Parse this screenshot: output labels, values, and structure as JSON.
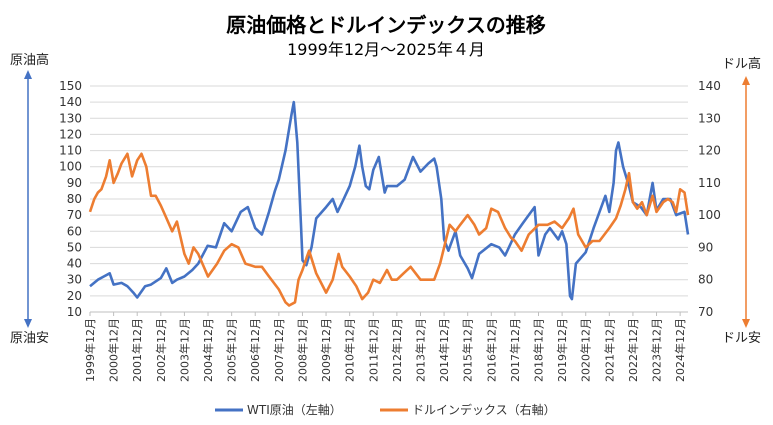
{
  "chart_data": {
    "type": "line",
    "title": "原油価格とドルインデックスの推移",
    "subtitle": "1999年12月～2025年４月",
    "left_axis": {
      "range": [
        10,
        150
      ],
      "step": 10,
      "top_label": "原油高",
      "bottom_label": "原油安",
      "color": "#4472C4"
    },
    "right_axis": {
      "range": [
        70,
        140
      ],
      "step": 10,
      "top_label": "ドル高",
      "bottom_label": "ドル安",
      "color": "#ED7D31"
    },
    "x_range": [
      1999.917,
      2025.25
    ],
    "categories": [
      "1999年12月",
      "2000年12月",
      "2001年12月",
      "2002年12月",
      "2003年12月",
      "2004年12月",
      "2005年12月",
      "2006年12月",
      "2007年12月",
      "2008年12月",
      "2009年12月",
      "2010年12月",
      "2011年12月",
      "2012年12月",
      "2013年12月",
      "2014年12月",
      "2015年12月",
      "2016年12月",
      "2017年12月",
      "2018年12月",
      "2019年12月",
      "2020年12月",
      "2021年12月",
      "2022年12月",
      "2023年12月",
      "2024年12月"
    ],
    "grid": true,
    "legend_position": "bottom",
    "series": [
      {
        "name": "WTI原油（左軸）",
        "axis": "left",
        "color": "#4472C4",
        "points": [
          [
            1999.917,
            26
          ],
          [
            2000.25,
            30
          ],
          [
            2000.5,
            32
          ],
          [
            2000.75,
            34
          ],
          [
            2000.917,
            27
          ],
          [
            2001.25,
            28
          ],
          [
            2001.5,
            26
          ],
          [
            2001.75,
            22
          ],
          [
            2001.917,
            19
          ],
          [
            2002.25,
            26
          ],
          [
            2002.5,
            27
          ],
          [
            2002.917,
            31
          ],
          [
            2003.15,
            37
          ],
          [
            2003.4,
            28
          ],
          [
            2003.6,
            30
          ],
          [
            2003.917,
            32
          ],
          [
            2004.25,
            36
          ],
          [
            2004.5,
            40
          ],
          [
            2004.9,
            51
          ],
          [
            2005.25,
            50
          ],
          [
            2005.6,
            65
          ],
          [
            2005.917,
            60
          ],
          [
            2006.3,
            72
          ],
          [
            2006.6,
            75
          ],
          [
            2006.917,
            62
          ],
          [
            2007.2,
            58
          ],
          [
            2007.5,
            72
          ],
          [
            2007.75,
            85
          ],
          [
            2007.917,
            92
          ],
          [
            2008.2,
            110
          ],
          [
            2008.45,
            132
          ],
          [
            2008.55,
            140
          ],
          [
            2008.7,
            115
          ],
          [
            2008.85,
            65
          ],
          [
            2008.917,
            42
          ],
          [
            2009.08,
            39
          ],
          [
            2009.3,
            50
          ],
          [
            2009.5,
            68
          ],
          [
            2009.917,
            75
          ],
          [
            2010.2,
            80
          ],
          [
            2010.4,
            72
          ],
          [
            2010.6,
            78
          ],
          [
            2010.917,
            88
          ],
          [
            2011.15,
            100
          ],
          [
            2011.33,
            113
          ],
          [
            2011.45,
            100
          ],
          [
            2011.6,
            88
          ],
          [
            2011.75,
            86
          ],
          [
            2011.917,
            98
          ],
          [
            2012.15,
            106
          ],
          [
            2012.4,
            84
          ],
          [
            2012.5,
            88
          ],
          [
            2012.917,
            88
          ],
          [
            2013.25,
            92
          ],
          [
            2013.6,
            106
          ],
          [
            2013.917,
            97
          ],
          [
            2014.25,
            102
          ],
          [
            2014.5,
            105
          ],
          [
            2014.6,
            100
          ],
          [
            2014.8,
            80
          ],
          [
            2014.917,
            55
          ],
          [
            2015.1,
            48
          ],
          [
            2015.4,
            60
          ],
          [
            2015.6,
            45
          ],
          [
            2015.917,
            37
          ],
          [
            2016.1,
            31
          ],
          [
            2016.4,
            46
          ],
          [
            2016.917,
            52
          ],
          [
            2017.25,
            50
          ],
          [
            2017.5,
            45
          ],
          [
            2017.917,
            58
          ],
          [
            2018.25,
            65
          ],
          [
            2018.5,
            70
          ],
          [
            2018.75,
            75
          ],
          [
            2018.917,
            45
          ],
          [
            2019.2,
            58
          ],
          [
            2019.4,
            62
          ],
          [
            2019.75,
            55
          ],
          [
            2019.917,
            60
          ],
          [
            2020.1,
            52
          ],
          [
            2020.25,
            20
          ],
          [
            2020.33,
            18
          ],
          [
            2020.5,
            40
          ],
          [
            2020.917,
            47
          ],
          [
            2021.25,
            62
          ],
          [
            2021.5,
            72
          ],
          [
            2021.75,
            82
          ],
          [
            2021.917,
            72
          ],
          [
            2022.1,
            90
          ],
          [
            2022.2,
            110
          ],
          [
            2022.3,
            115
          ],
          [
            2022.5,
            100
          ],
          [
            2022.75,
            88
          ],
          [
            2022.917,
            78
          ],
          [
            2023.25,
            75
          ],
          [
            2023.5,
            70
          ],
          [
            2023.75,
            90
          ],
          [
            2023.917,
            73
          ],
          [
            2024.2,
            80
          ],
          [
            2024.5,
            80
          ],
          [
            2024.75,
            70
          ],
          [
            2024.917,
            71
          ],
          [
            2025.1,
            72
          ],
          [
            2025.25,
            58
          ]
        ]
      },
      {
        "name": "ドルインデックス（右軸）",
        "axis": "right",
        "color": "#ED7D31",
        "points": [
          [
            1999.917,
            101
          ],
          [
            2000.1,
            105
          ],
          [
            2000.25,
            107
          ],
          [
            2000.4,
            108
          ],
          [
            2000.6,
            112
          ],
          [
            2000.75,
            117
          ],
          [
            2000.917,
            110
          ],
          [
            2001.1,
            113
          ],
          [
            2001.25,
            116
          ],
          [
            2001.5,
            119
          ],
          [
            2001.7,
            112
          ],
          [
            2001.917,
            117
          ],
          [
            2002.1,
            119
          ],
          [
            2002.3,
            115
          ],
          [
            2002.5,
            106
          ],
          [
            2002.7,
            106
          ],
          [
            2002.917,
            103
          ],
          [
            2003.1,
            100
          ],
          [
            2003.4,
            95
          ],
          [
            2003.6,
            98
          ],
          [
            2003.917,
            88
          ],
          [
            2004.1,
            85
          ],
          [
            2004.3,
            90
          ],
          [
            2004.5,
            88
          ],
          [
            2004.917,
            81
          ],
          [
            2005.3,
            85
          ],
          [
            2005.6,
            89
          ],
          [
            2005.917,
            91
          ],
          [
            2006.2,
            90
          ],
          [
            2006.5,
            85
          ],
          [
            2006.917,
            84
          ],
          [
            2007.2,
            84
          ],
          [
            2007.5,
            81
          ],
          [
            2007.917,
            77
          ],
          [
            2008.2,
            73
          ],
          [
            2008.35,
            72
          ],
          [
            2008.6,
            73
          ],
          [
            2008.75,
            80
          ],
          [
            2008.917,
            83
          ],
          [
            2009.1,
            87
          ],
          [
            2009.2,
            89
          ],
          [
            2009.5,
            82
          ],
          [
            2009.917,
            76
          ],
          [
            2010.2,
            80
          ],
          [
            2010.45,
            88
          ],
          [
            2010.6,
            84
          ],
          [
            2010.917,
            81
          ],
          [
            2011.2,
            78
          ],
          [
            2011.45,
            74
          ],
          [
            2011.7,
            76
          ],
          [
            2011.917,
            80
          ],
          [
            2012.2,
            79
          ],
          [
            2012.5,
            83
          ],
          [
            2012.7,
            80
          ],
          [
            2012.917,
            80
          ],
          [
            2013.2,
            82
          ],
          [
            2013.5,
            84
          ],
          [
            2013.917,
            80
          ],
          [
            2014.25,
            80
          ],
          [
            2014.5,
            80
          ],
          [
            2014.75,
            85
          ],
          [
            2014.917,
            90
          ],
          [
            2015.15,
            97
          ],
          [
            2015.4,
            95
          ],
          [
            2015.6,
            97
          ],
          [
            2015.917,
            100
          ],
          [
            2016.2,
            97
          ],
          [
            2016.4,
            94
          ],
          [
            2016.7,
            96
          ],
          [
            2016.917,
            102
          ],
          [
            2017.2,
            101
          ],
          [
            2017.5,
            96
          ],
          [
            2017.75,
            93
          ],
          [
            2017.917,
            92
          ],
          [
            2018.2,
            89
          ],
          [
            2018.5,
            94
          ],
          [
            2018.917,
            97
          ],
          [
            2019.3,
            97
          ],
          [
            2019.6,
            98
          ],
          [
            2019.917,
            96
          ],
          [
            2020.2,
            99
          ],
          [
            2020.4,
            102
          ],
          [
            2020.6,
            94
          ],
          [
            2020.917,
            90
          ],
          [
            2021.2,
            92
          ],
          [
            2021.5,
            92
          ],
          [
            2021.917,
            96
          ],
          [
            2022.2,
            99
          ],
          [
            2022.4,
            103
          ],
          [
            2022.6,
            108
          ],
          [
            2022.75,
            113
          ],
          [
            2022.917,
            104
          ],
          [
            2023.1,
            102
          ],
          [
            2023.3,
            104
          ],
          [
            2023.5,
            100
          ],
          [
            2023.75,
            106
          ],
          [
            2023.917,
            101
          ],
          [
            2024.2,
            104
          ],
          [
            2024.4,
            105
          ],
          [
            2024.6,
            104
          ],
          [
            2024.75,
            101
          ],
          [
            2024.917,
            108
          ],
          [
            2025.1,
            107
          ],
          [
            2025.25,
            100
          ]
        ]
      }
    ]
  }
}
